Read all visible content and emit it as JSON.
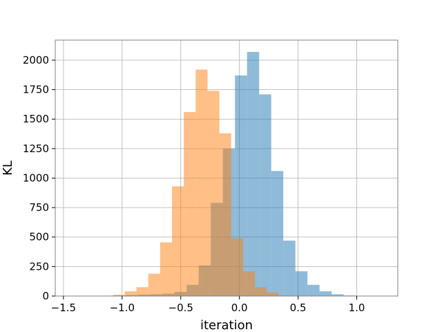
{
  "chart_data": {
    "type": "bar",
    "title": "",
    "xlabel": "iteration",
    "ylabel": "KL",
    "xlim": [
      -1.57,
      1.35
    ],
    "ylim": [
      0,
      2170
    ],
    "xticks": [
      -1.5,
      -1.0,
      -0.5,
      0.0,
      0.5,
      1.0
    ],
    "xtick_labels": [
      "−1.5",
      "−1.0",
      "−0.5",
      "0.0",
      "0.5",
      "1.0"
    ],
    "yticks": [
      0,
      250,
      500,
      750,
      1000,
      1250,
      1500,
      1750,
      2000
    ],
    "ytick_labels": [
      "0",
      "250",
      "500",
      "750",
      "1000",
      "1250",
      "1500",
      "1750",
      "2000"
    ],
    "grid": true,
    "legend": "none",
    "series": [
      {
        "color": "#1f77b4",
        "alpha": 0.5,
        "bin_edges": [
          -1.48,
          -1.377,
          -1.274,
          -1.171,
          -1.068,
          -0.965,
          -0.862,
          -0.759,
          -0.656,
          -0.553,
          -0.45,
          -0.347,
          -0.244,
          -0.141,
          -0.038,
          0.065,
          0.168,
          0.271,
          0.374,
          0.477,
          0.58,
          0.683,
          0.786,
          0.889,
          0.992,
          1.095,
          1.198
        ],
        "counts": [
          1,
          1,
          2,
          3,
          5,
          8,
          12,
          15,
          20,
          35,
          95,
          260,
          790,
          1250,
          1870,
          2070,
          1710,
          1060,
          470,
          210,
          95,
          40,
          15,
          5,
          2,
          1
        ]
      },
      {
        "color": "#ff7f0e",
        "alpha": 0.5,
        "bin_edges": [
          -1.08,
          -0.979,
          -0.878,
          -0.777,
          -0.676,
          -0.575,
          -0.474,
          -0.373,
          -0.272,
          -0.171,
          -0.07,
          0.031,
          0.132,
          0.233,
          0.334,
          0.435
        ],
        "counts": [
          10,
          40,
          75,
          190,
          455,
          930,
          1560,
          1920,
          1740,
          1380,
          490,
          210,
          75,
          30,
          5
        ]
      }
    ]
  }
}
